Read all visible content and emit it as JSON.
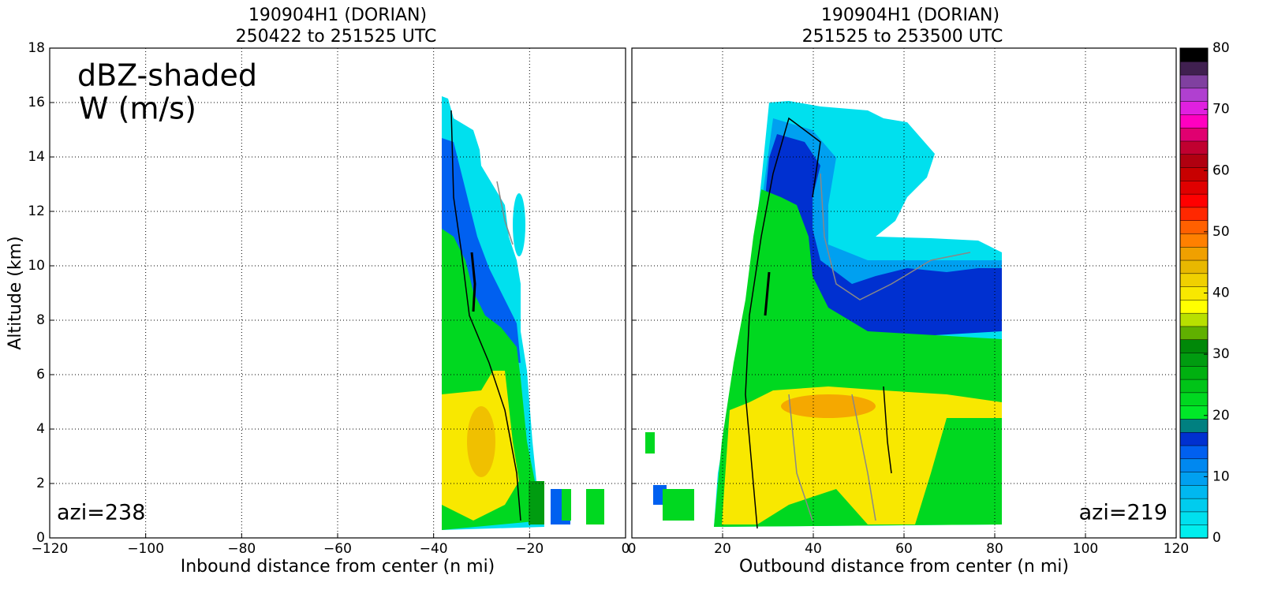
{
  "chart_data": [
    {
      "type": "field",
      "title": "190904H1 (DORIAN)",
      "subtitle": "250422 to 251525 UTC",
      "xlabel": "Inbound distance from center (n mi)",
      "ylabel": "Altitude (km)",
      "xlim": [
        -120,
        0
      ],
      "xticks": [
        {
          "value": -120,
          "label": "−120"
        },
        {
          "value": -100,
          "label": "−100"
        },
        {
          "value": -80,
          "label": "−80"
        },
        {
          "value": -60,
          "label": "−60"
        },
        {
          "value": -40,
          "label": "−40"
        },
        {
          "value": -20,
          "label": "−20"
        },
        0
      ],
      "ylim": [
        0,
        18
      ],
      "yticks": [
        0,
        2,
        4,
        6,
        8,
        10,
        12,
        14,
        16,
        18
      ],
      "grid": true,
      "annotations": [
        "dBZ-shaded",
        "W (m/s)",
        "azi=238"
      ]
    },
    {
      "type": "field",
      "title": "190904H1 (DORIAN)",
      "subtitle": "251525 to 253500 UTC",
      "xlabel": "Outbound distance from center (n mi)",
      "xlim": [
        0,
        120
      ],
      "xticks": [
        0,
        20,
        40,
        60,
        80,
        100,
        120
      ],
      "ylim": [
        0,
        18
      ],
      "yticks": [
        0,
        2,
        4,
        6,
        8,
        10,
        12,
        14,
        16,
        18
      ],
      "show_ytick_labels": false,
      "grid": true,
      "annotations": [
        "azi=219"
      ]
    },
    {
      "type": "colorbar",
      "ylim": [
        0,
        80
      ],
      "yticks": [
        0,
        10,
        20,
        30,
        40,
        50,
        60,
        70,
        80
      ],
      "colors": [
        "#00eeee",
        "#00e0ee",
        "#00ccee",
        "#00b8f0",
        "#00a0f0",
        "#0088f0",
        "#0060f0",
        "#0030d0",
        "#008080",
        "#00e828",
        "#00d820",
        "#00c418",
        "#00b010",
        "#009c10",
        "#008808",
        "#60b000",
        "#b8e000",
        "#ffff00",
        "#f8e800",
        "#f0d000",
        "#e8b800",
        "#f0a000",
        "#ff8000",
        "#ff6000",
        "#ff2800",
        "#ff0000",
        "#e00000",
        "#c80000",
        "#b00010",
        "#c00030",
        "#e00070",
        "#ff00c0",
        "#e020e0",
        "#b040d0",
        "#8040a0",
        "#402050",
        "#000000"
      ]
    }
  ]
}
